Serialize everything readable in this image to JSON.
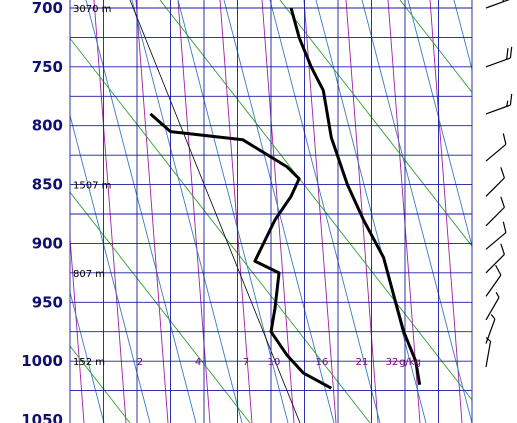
{
  "chart_data": {
    "type": "line",
    "title": "",
    "xlabel": "",
    "ylabel": "",
    "pressure_axis": {
      "ylim": [
        700,
        1050
      ],
      "ticks": [
        700,
        750,
        800,
        850,
        900,
        950,
        1000,
        1050
      ],
      "tick_labels": [
        "700",
        "750",
        "800",
        "850",
        "900",
        "950",
        "1000",
        "1050"
      ]
    },
    "height_annotations": [
      {
        "pressure": 700,
        "label": "3070 m"
      },
      {
        "pressure": 850,
        "label": "1507 m"
      },
      {
        "pressure": 925,
        "label": "807 m"
      },
      {
        "pressure": 1000,
        "label": "152 m"
      }
    ],
    "mixing_ratio_labels": [
      "2",
      "4",
      "7",
      "10",
      "16",
      "21",
      "32",
      "g/kg"
    ],
    "series": [
      {
        "name": "",
        "color": "#000000",
        "points": [
          {
            "x": 0.55,
            "p": 700
          },
          {
            "x": 0.57,
            "p": 725
          },
          {
            "x": 0.6,
            "p": 750
          },
          {
            "x": 0.63,
            "p": 770
          },
          {
            "x": 0.64,
            "p": 790
          },
          {
            "x": 0.65,
            "p": 810
          },
          {
            "x": 0.69,
            "p": 850
          },
          {
            "x": 0.73,
            "p": 880
          },
          {
            "x": 0.78,
            "p": 912
          },
          {
            "x": 0.81,
            "p": 950
          },
          {
            "x": 0.83,
            "p": 975
          },
          {
            "x": 0.86,
            "p": 1000
          },
          {
            "x": 0.87,
            "p": 1020
          }
        ]
      },
      {
        "name": "",
        "color": "#000000",
        "points": [
          {
            "x": 0.2,
            "p": 790
          },
          {
            "x": 0.25,
            "p": 805
          },
          {
            "x": 0.43,
            "p": 812
          },
          {
            "x": 0.54,
            "p": 835
          },
          {
            "x": 0.57,
            "p": 845
          },
          {
            "x": 0.55,
            "p": 860
          },
          {
            "x": 0.51,
            "p": 880
          },
          {
            "x": 0.46,
            "p": 915
          },
          {
            "x": 0.52,
            "p": 925
          },
          {
            "x": 0.51,
            "p": 955
          },
          {
            "x": 0.5,
            "p": 975
          },
          {
            "x": 0.54,
            "p": 995
          },
          {
            "x": 0.58,
            "p": 1010
          },
          {
            "x": 0.65,
            "p": 1023
          }
        ]
      }
    ],
    "grid": true,
    "legend": "none",
    "colors": {
      "grid": "#1a1aa0",
      "dry_adiabat": "#2fa02f",
      "moist_adiabat": "#3a7ac0",
      "mixing_ratio": "#a020a0",
      "isotherm": "#1a1aa0",
      "profile": "#000000",
      "pressure_label": "#101070"
    },
    "wind_barbs": [
      {
        "pressure": 700,
        "speed_kt": 25,
        "dir_deg": 250
      },
      {
        "pressure": 750,
        "speed_kt": 20,
        "dir_deg": 250
      },
      {
        "pressure": 790,
        "speed_kt": 15,
        "dir_deg": 250
      },
      {
        "pressure": 830,
        "speed_kt": 10,
        "dir_deg": 230
      },
      {
        "pressure": 860,
        "speed_kt": 10,
        "dir_deg": 225
      },
      {
        "pressure": 885,
        "speed_kt": 10,
        "dir_deg": 225
      },
      {
        "pressure": 905,
        "speed_kt": 10,
        "dir_deg": 230
      },
      {
        "pressure": 925,
        "speed_kt": 10,
        "dir_deg": 225
      },
      {
        "pressure": 945,
        "speed_kt": 10,
        "dir_deg": 215
      },
      {
        "pressure": 965,
        "speed_kt": 5,
        "dir_deg": 210
      },
      {
        "pressure": 985,
        "speed_kt": 5,
        "dir_deg": 200
      },
      {
        "pressure": 1005,
        "speed_kt": 5,
        "dir_deg": 190
      }
    ]
  }
}
